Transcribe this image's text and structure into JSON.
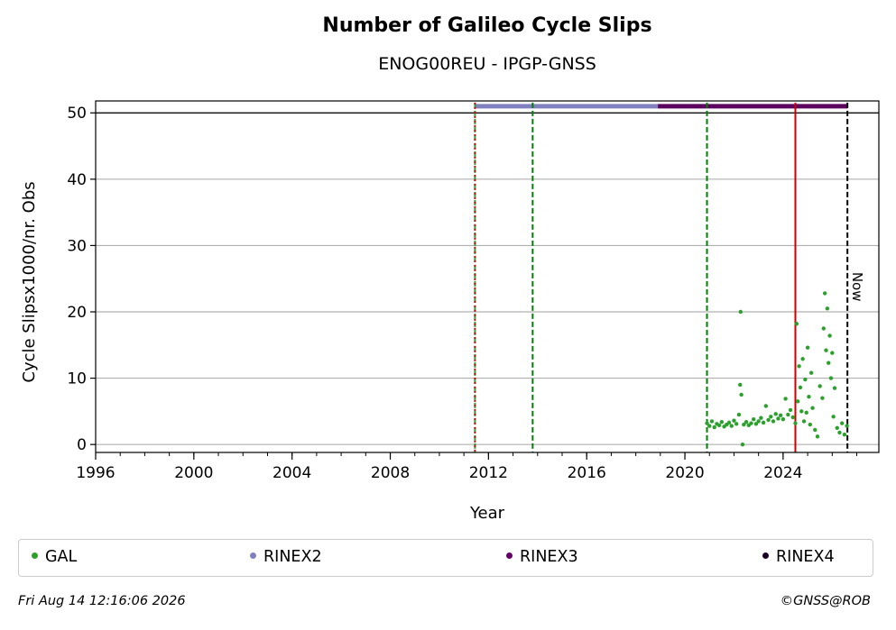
{
  "chart_data": {
    "type": "scatter",
    "title": "Number of Galileo Cycle Slips",
    "subtitle": "ENOG00REU - IPGP-GNSS",
    "xlabel": "Year",
    "ylabel": "Cycle Slipsx1000/nr. Obs",
    "xlim": [
      1996,
      2027.9
    ],
    "ylim": [
      -1.2,
      51.8
    ],
    "xticks": [
      "1996",
      "2000",
      "2004",
      "2008",
      "2012",
      "2016",
      "2020",
      "2024"
    ],
    "xtick_values": [
      1996,
      2000,
      2004,
      2008,
      2012,
      2016,
      2020,
      2024
    ],
    "yticks": [
      0,
      10,
      20,
      30,
      40,
      50
    ],
    "grid": "horizontal",
    "series": [
      {
        "name": "GAL",
        "color": "#2ca02c",
        "points": [
          [
            2020.9,
            3.2
          ],
          [
            2021.0,
            2.8
          ],
          [
            2021.1,
            3.5
          ],
          [
            2021.2,
            2.6
          ],
          [
            2021.3,
            3.1
          ],
          [
            2021.4,
            2.9
          ],
          [
            2021.5,
            3.4
          ],
          [
            2021.6,
            2.7
          ],
          [
            2021.7,
            3.0
          ],
          [
            2021.8,
            3.3
          ],
          [
            2021.9,
            2.8
          ],
          [
            2022.0,
            3.6
          ],
          [
            2022.1,
            3.1
          ],
          [
            2022.2,
            4.5
          ],
          [
            2022.25,
            9.0
          ],
          [
            2022.27,
            20.0
          ],
          [
            2022.3,
            7.5
          ],
          [
            2022.35,
            0.0
          ],
          [
            2022.4,
            3.0
          ],
          [
            2022.5,
            3.4
          ],
          [
            2022.6,
            2.9
          ],
          [
            2022.7,
            3.2
          ],
          [
            2022.8,
            3.8
          ],
          [
            2022.9,
            3.1
          ],
          [
            2023.0,
            3.5
          ],
          [
            2023.1,
            4.0
          ],
          [
            2023.2,
            3.3
          ],
          [
            2023.3,
            5.8
          ],
          [
            2023.4,
            3.7
          ],
          [
            2023.5,
            4.2
          ],
          [
            2023.6,
            3.5
          ],
          [
            2023.7,
            4.6
          ],
          [
            2023.8,
            3.9
          ],
          [
            2023.9,
            4.4
          ],
          [
            2024.0,
            3.8
          ],
          [
            2024.1,
            6.9
          ],
          [
            2024.2,
            4.5
          ],
          [
            2024.3,
            5.2
          ],
          [
            2024.4,
            4.1
          ],
          [
            2024.5,
            3.2
          ],
          [
            2024.55,
            18.2
          ],
          [
            2024.6,
            6.5
          ],
          [
            2024.65,
            11.8
          ],
          [
            2024.7,
            8.6
          ],
          [
            2024.75,
            5.0
          ],
          [
            2024.8,
            12.9
          ],
          [
            2024.85,
            3.5
          ],
          [
            2024.9,
            9.8
          ],
          [
            2024.95,
            4.8
          ],
          [
            2025.0,
            14.6
          ],
          [
            2025.05,
            7.2
          ],
          [
            2025.1,
            3.0
          ],
          [
            2025.15,
            10.8
          ],
          [
            2025.2,
            5.5
          ],
          [
            2025.3,
            2.2
          ],
          [
            2025.4,
            1.2
          ],
          [
            2025.5,
            8.8
          ],
          [
            2025.6,
            7.0
          ],
          [
            2025.65,
            17.5
          ],
          [
            2025.7,
            22.8
          ],
          [
            2025.75,
            14.2
          ],
          [
            2025.8,
            20.5
          ],
          [
            2025.85,
            12.3
          ],
          [
            2025.9,
            16.4
          ],
          [
            2025.95,
            10.0
          ],
          [
            2026.0,
            13.8
          ],
          [
            2026.05,
            4.2
          ],
          [
            2026.1,
            8.5
          ],
          [
            2026.2,
            2.5
          ],
          [
            2026.3,
            1.8
          ],
          [
            2026.4,
            3.2
          ],
          [
            2026.5,
            1.5
          ],
          [
            2026.6,
            2.8
          ]
        ]
      },
      {
        "name": "RINEX2",
        "color": "#8080c0",
        "x_range": [
          2011.45,
          2018.9
        ]
      },
      {
        "name": "RINEX3",
        "color": "#5c0060",
        "x_range": [
          2018.9,
          2026.62
        ]
      },
      {
        "name": "RINEX4",
        "color": "#1a0020",
        "x_range": []
      }
    ],
    "vlines": [
      {
        "x": 2011.45,
        "color": "#2ca02c",
        "style": "dashed"
      },
      {
        "x": 2011.45,
        "color": "#cc0000",
        "style": "dotted"
      },
      {
        "x": 2013.8,
        "color": "#008000",
        "style": "dashed"
      },
      {
        "x": 2020.9,
        "color": "#008000",
        "style": "dashed"
      },
      {
        "x": 2024.5,
        "color": "#cc0000",
        "style": "solid"
      },
      {
        "x": 2026.62,
        "color": "#000000",
        "style": "dashed",
        "label": "Now"
      }
    ],
    "hline": {
      "y": 50,
      "color": "#000000"
    },
    "bar_y": 51
  },
  "legend": [
    {
      "label": "GAL",
      "color": "#2ca02c"
    },
    {
      "label": "RINEX2",
      "color": "#8080c0"
    },
    {
      "label": "RINEX3",
      "color": "#660066"
    },
    {
      "label": "RINEX4",
      "color": "#1a0020"
    }
  ],
  "footer": {
    "timestamp": "Fri Aug 14 12:16:06 2026",
    "credit": "©GNSS@ROB"
  }
}
